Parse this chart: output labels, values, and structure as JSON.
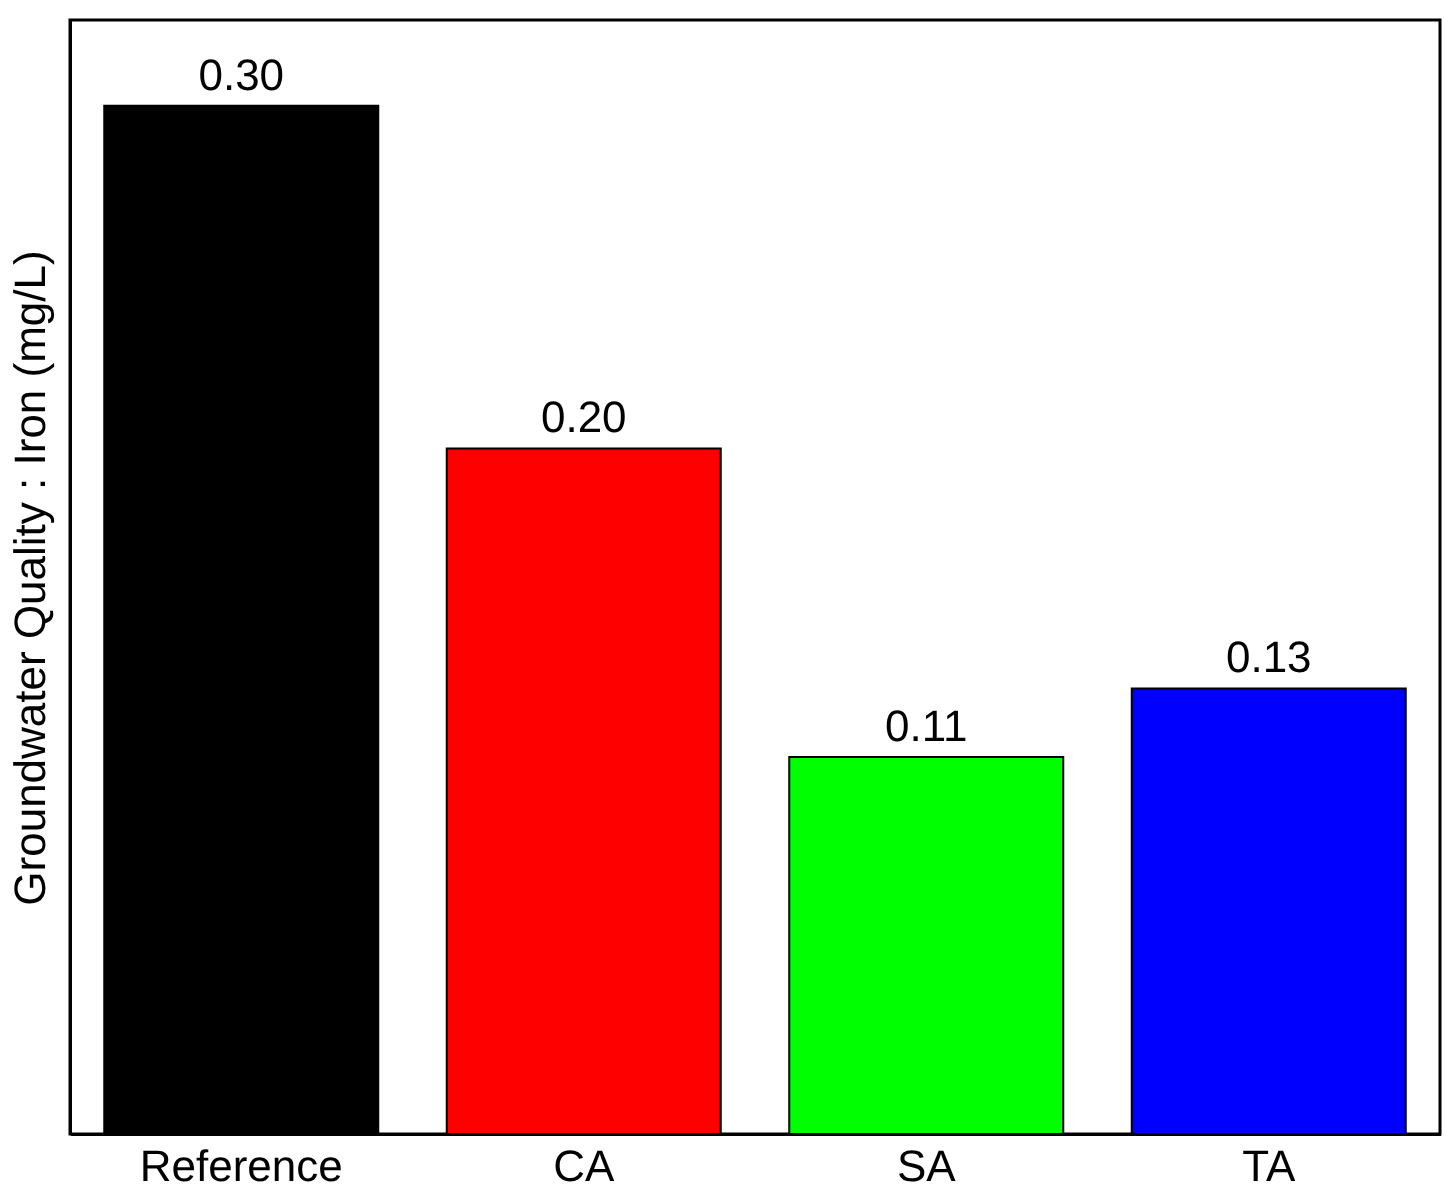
{
  "chart_data": {
    "type": "bar",
    "ylabel": "Groundwater Quality : Iron (mg/L)",
    "categories": [
      "Reference",
      "CA",
      "SA",
      "TA"
    ],
    "values": [
      0.3,
      0.2,
      0.11,
      0.13
    ],
    "colors": [
      "#000000",
      "#ff0000",
      "#00ff00",
      "#0000ff"
    ],
    "value_labels": [
      "0.30",
      "0.20",
      "0.11",
      "0.13"
    ],
    "ylim": [
      0,
      0.325
    ],
    "tick_labels": "x"
  }
}
